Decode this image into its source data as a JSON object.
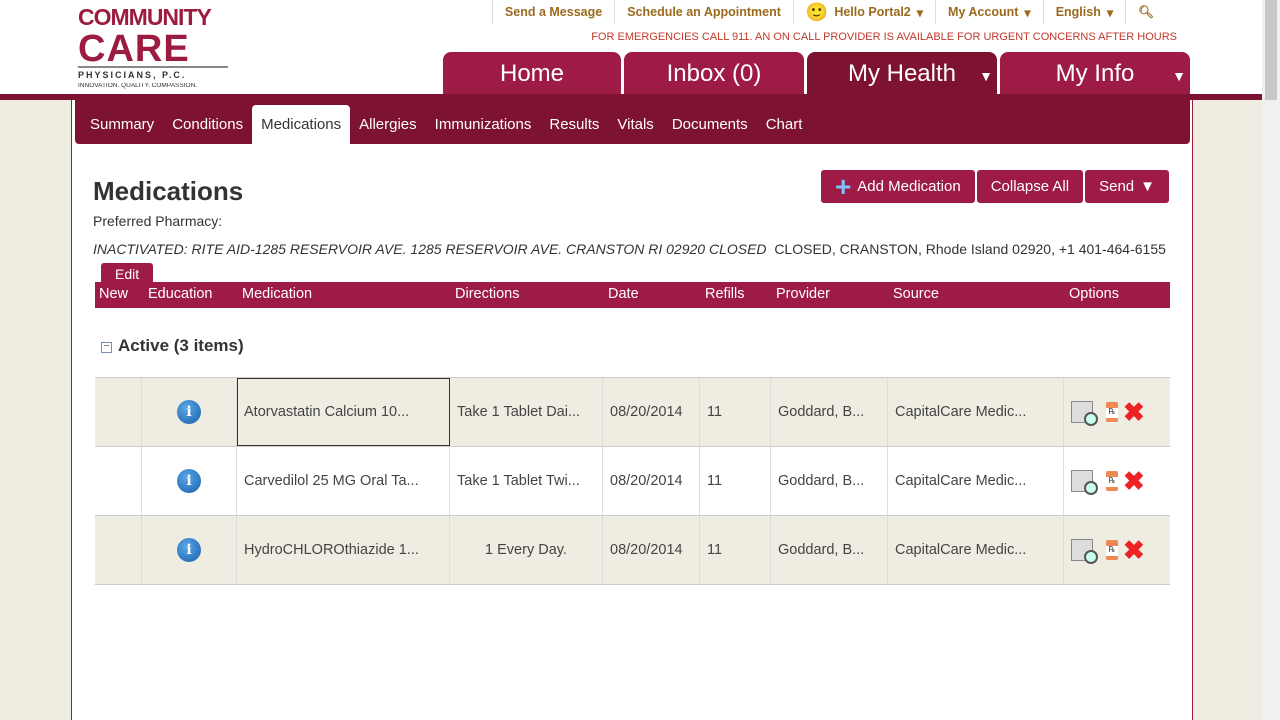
{
  "logo": {
    "line1": "COMMUNITY",
    "line2": "CARE",
    "line3": "PHYSICIANS, P.C.",
    "line4": "INNOVATION. QUALITY. COMPASSION."
  },
  "toplinks": [
    "Send a Message",
    "Schedule an Appointment",
    "Hello Portal2",
    "My Account",
    "English"
  ],
  "emergency": "FOR EMERGENCIES CALL 911. AN ON CALL PROVIDER IS AVAILABLE FOR URGENT CONCERNS AFTER HOURS",
  "maintabs": [
    "Home",
    "Inbox (0)",
    "My Health",
    "My Info"
  ],
  "subnav": [
    "Summary",
    "Conditions",
    "Medications",
    "Allergies",
    "Immunizations",
    "Results",
    "Vitals",
    "Documents",
    "Chart"
  ],
  "page": {
    "title": "Medications",
    "add": "Add Medication",
    "collapse": "Collapse All",
    "send": "Send",
    "preferred": "Preferred Pharmacy:",
    "pharmacy_italic": "INACTIVATED: RITE AID-1285 RESERVOIR AVE. 1285 RESERVOIR AVE. CRANSTON RI 02920 CLOSED",
    "pharmacy_rest": "  CLOSED, CRANSTON, Rhode Island 02920, +1 401-464-6155",
    "edit": "Edit"
  },
  "columns": [
    "New",
    "Education",
    "Medication",
    "Directions",
    "Date",
    "Refills",
    "Provider",
    "Source",
    "Options"
  ],
  "group": "Active (3 items)",
  "rows": [
    {
      "medication": "Atorvastatin Calcium 10...",
      "directions": "Take 1 Tablet Dai...",
      "date": "08/20/2014",
      "refills": "11",
      "provider": "Goddard, B...",
      "source": "CapitalCare Medic..."
    },
    {
      "medication": "Carvedilol 25 MG Oral Ta...",
      "directions": "Take 1 Tablet Twi...",
      "date": "08/20/2014",
      "refills": "11",
      "provider": "Goddard, B...",
      "source": "CapitalCare Medic..."
    },
    {
      "medication": "HydroCHLOROthiazide 1...",
      "directions": "1 Every Day.",
      "date": "08/20/2014",
      "refills": "11",
      "provider": "Goddard, B...",
      "source": "CapitalCare Medic..."
    }
  ]
}
